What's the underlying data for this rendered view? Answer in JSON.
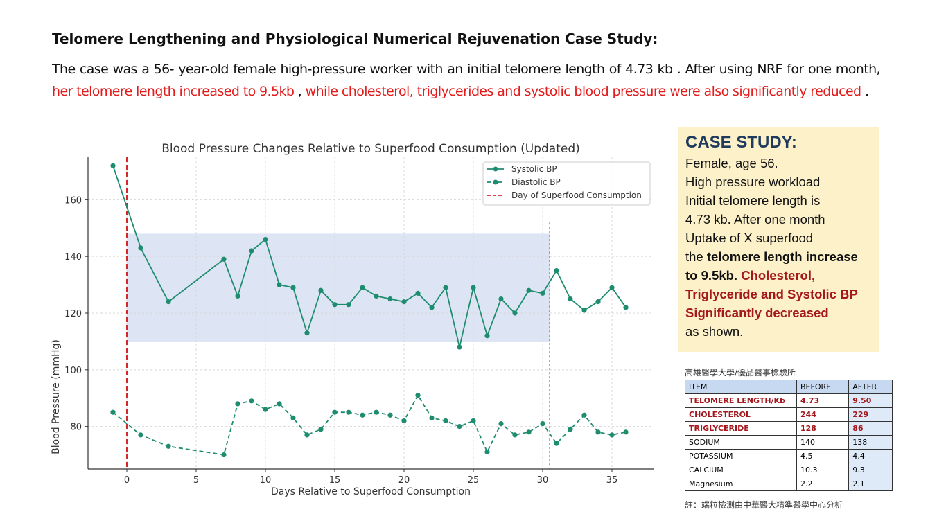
{
  "heading": "Telomere Lengthening and Physiological Numerical Rejuvenation Case Study:",
  "intro": {
    "part1": "The case was a 56- year-old female high-pressure worker with an initial telomere length of 4.73 kb . After using NRF for one month, ",
    "part2_red": "her telomere length increased to 9.5kb",
    "part3": " , ",
    "part4_red": "while cholesterol, triglycerides and systolic blood pressure were also significantly reduced",
    "part5": " ."
  },
  "case_study": {
    "title": "CASE STUDY:",
    "line1": "Female, age 56.",
    "line2": "High pressure workload",
    "line3": "Initial telomere length is",
    "line4": "4.73 kb. After one month",
    "line5": "Uptake of X superfood",
    "line6_pre": "the ",
    "line6_bold": "telomere length increase to 9.5kb.",
    "line6_red": " Cholesterol, Triglyceride and Systolic BP Significantly decreased",
    "line7": "as shown."
  },
  "lab": {
    "heading": "高雄醫學大學/優品醫事檢驗所",
    "columns": [
      "ITEM",
      "BEFORE",
      "AFTER"
    ],
    "rows": [
      {
        "item": "TELOMERE LENGTH/Kb",
        "before": "4.73",
        "after": "9.50",
        "highlight": true
      },
      {
        "item": "CHOLESTEROL",
        "before": "244",
        "after": "229",
        "highlight": true
      },
      {
        "item": "TRIGLYCERIDE",
        "before": "128",
        "after": "86",
        "highlight": true
      },
      {
        "item": "SODIUM",
        "before": "140",
        "after": "138",
        "highlight": false
      },
      {
        "item": "POTASSIUM",
        "before": "4.5",
        "after": "4.4",
        "highlight": false
      },
      {
        "item": "CALCIUM",
        "before": "10.3",
        "after": "9.3",
        "highlight": false
      },
      {
        "item": "Magnesium",
        "before": "2.2",
        "after": "2.1",
        "highlight": false
      }
    ],
    "footnote": "註：端粒檢測由中華醫大精準醫學中心分析"
  },
  "chart_data": {
    "type": "line",
    "title": "Blood Pressure Changes Relative to Superfood Consumption (Updated)",
    "xlabel": "Days Relative to Superfood Consumption",
    "ylabel": "Blood Pressure (mmHg)",
    "xlim": [
      -2.8,
      38
    ],
    "ylim": [
      65,
      175
    ],
    "xticks": [
      0,
      5,
      10,
      15,
      20,
      25,
      30,
      35
    ],
    "yticks": [
      80,
      100,
      120,
      140,
      160
    ],
    "grid": true,
    "legend_position": "upper right",
    "color": "#1e8c6e",
    "shaded_band": {
      "x": [
        0,
        30.5
      ],
      "y": [
        110,
        148
      ],
      "color": "#dde4f3"
    },
    "markers": [
      {
        "name": "Day of Superfood Consumption",
        "x": 0,
        "color": "#d62728"
      },
      {
        "x": 30.5,
        "color": "#d62728"
      }
    ],
    "x": [
      -1,
      1,
      3,
      7,
      8,
      9,
      10,
      11,
      12,
      13,
      14,
      15,
      16,
      17,
      18,
      19,
      20,
      21,
      22,
      23,
      24,
      25,
      26,
      27,
      28,
      29,
      30,
      31,
      32,
      33,
      34,
      35,
      36
    ],
    "series": [
      {
        "name": "Systolic BP",
        "style": "solid",
        "values": [
          172,
          143,
          124,
          139,
          126,
          142,
          146,
          130,
          129,
          113,
          128,
          123,
          123,
          129,
          126,
          125,
          124,
          127,
          122,
          129,
          108,
          129,
          112,
          125,
          120,
          128,
          127,
          135,
          125,
          121,
          124,
          129,
          122
        ]
      },
      {
        "name": "Diastolic BP",
        "style": "dashed",
        "values": [
          85,
          77,
          73,
          70,
          88,
          89,
          86,
          88,
          83,
          77,
          79,
          85,
          85,
          84,
          85,
          84,
          82,
          91,
          83,
          82,
          80,
          82,
          71,
          81,
          77,
          78,
          81,
          74,
          79,
          84,
          78,
          77,
          78
        ]
      }
    ]
  }
}
